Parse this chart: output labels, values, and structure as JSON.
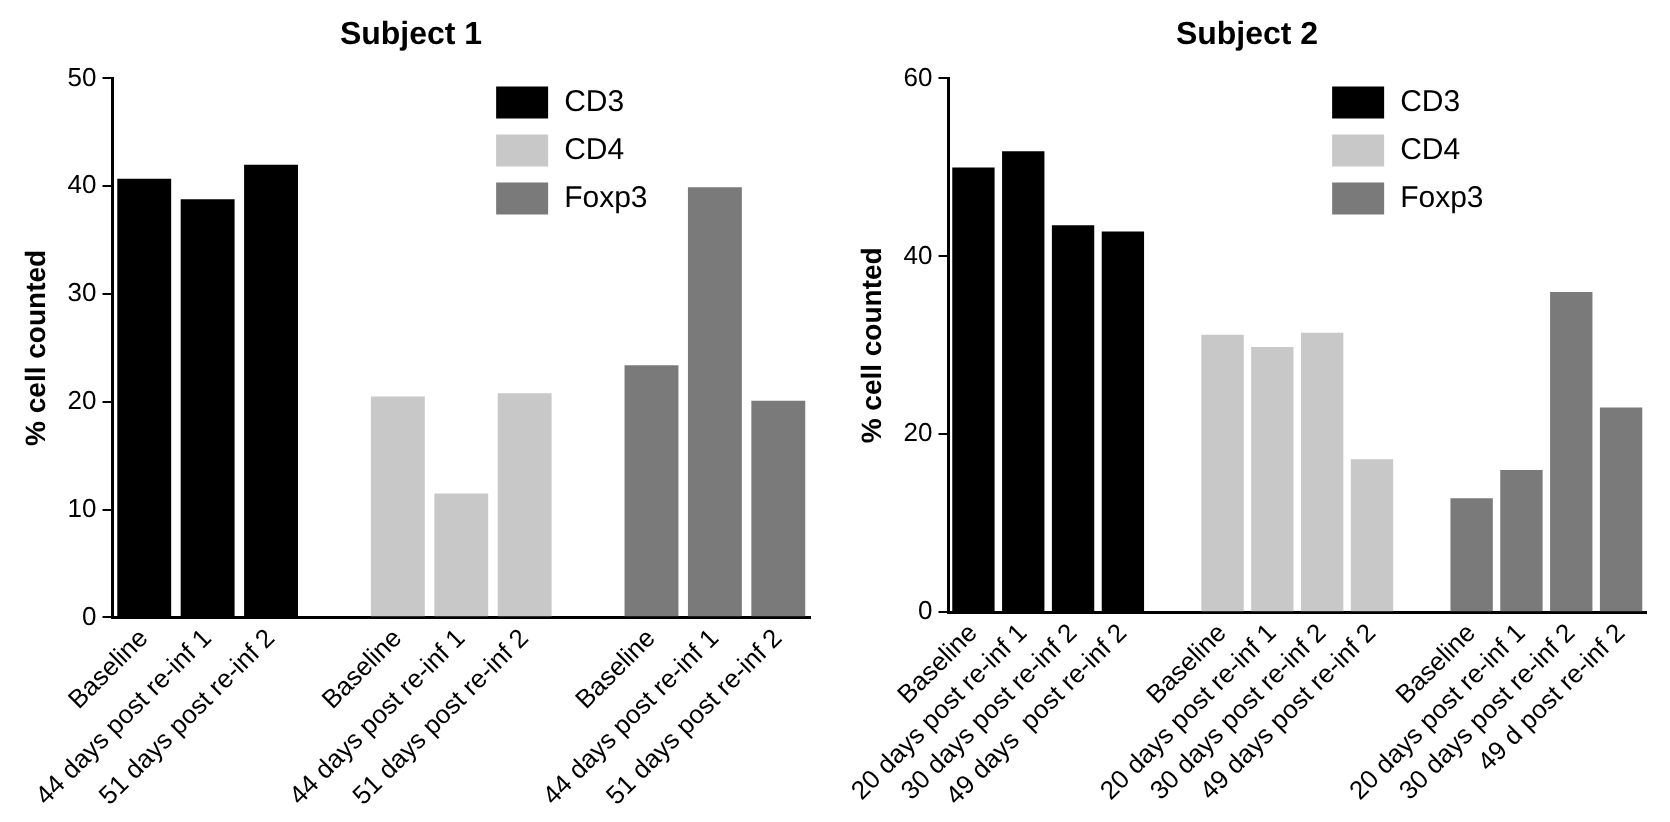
{
  "chart_data": [
    {
      "type": "bar",
      "title": "Subject 1",
      "ylabel": "% cell counted",
      "categories": [
        "Baseline",
        "44 days post re-inf 1",
        "51 days post re-inf 2",
        null,
        "Baseline",
        "44 days post re-inf 1",
        "51 days post re-inf 2",
        null,
        "Baseline",
        "44 days post re-inf 1",
        "51 days post re-inf 2"
      ],
      "series": [
        {
          "name": "CD3",
          "color": "#000000",
          "values": [
            40.7,
            38.8,
            42,
            null,
            null,
            null,
            null,
            null,
            null,
            null,
            null
          ]
        },
        {
          "name": "CD4",
          "color": "#c8c8c8",
          "values": [
            null,
            null,
            null,
            null,
            20.5,
            11.5,
            20.8,
            null,
            null,
            null,
            null
          ]
        },
        {
          "name": "Foxp3",
          "color": "#7a7a7a",
          "values": [
            null,
            null,
            null,
            null,
            null,
            null,
            null,
            null,
            23.4,
            39.9,
            20.1
          ]
        }
      ],
      "ylim": [
        0,
        50
      ],
      "yticks": [
        0,
        10,
        20,
        30,
        40,
        50
      ],
      "grid": false,
      "legend": "top right"
    },
    {
      "type": "bar",
      "title": "Subject 2",
      "ylabel": "% cell counted",
      "categories": [
        "Baseline",
        "20 days post re-inf 1",
        "30 days post re-inf 2",
        "49 days  post re-inf 2",
        null,
        "Baseline",
        "20 days post re-inf 1",
        "30 days post re-inf 2",
        "49 days post re-inf 2",
        null,
        "Baseline",
        "20 days post re-inf 1",
        "30 days post re-inf 2",
        "49 d post re-inf 2"
      ],
      "series": [
        {
          "name": "CD3",
          "color": "#000000",
          "values": [
            50,
            51.8,
            43.5,
            42.8,
            null,
            null,
            null,
            null,
            null,
            null,
            null,
            null,
            null,
            null
          ]
        },
        {
          "name": "CD4",
          "color": "#c8c8c8",
          "values": [
            null,
            null,
            null,
            null,
            null,
            31.2,
            29.8,
            31.4,
            17.2,
            null,
            null,
            null,
            null,
            null
          ]
        },
        {
          "name": "Foxp3",
          "color": "#7a7a7a",
          "values": [
            null,
            null,
            null,
            null,
            null,
            null,
            null,
            null,
            null,
            null,
            12.8,
            16,
            36,
            23
          ]
        }
      ],
      "ylim": [
        0,
        60
      ],
      "yticks": [
        0,
        20,
        40,
        60
      ],
      "grid": false,
      "legend": "top right"
    }
  ]
}
